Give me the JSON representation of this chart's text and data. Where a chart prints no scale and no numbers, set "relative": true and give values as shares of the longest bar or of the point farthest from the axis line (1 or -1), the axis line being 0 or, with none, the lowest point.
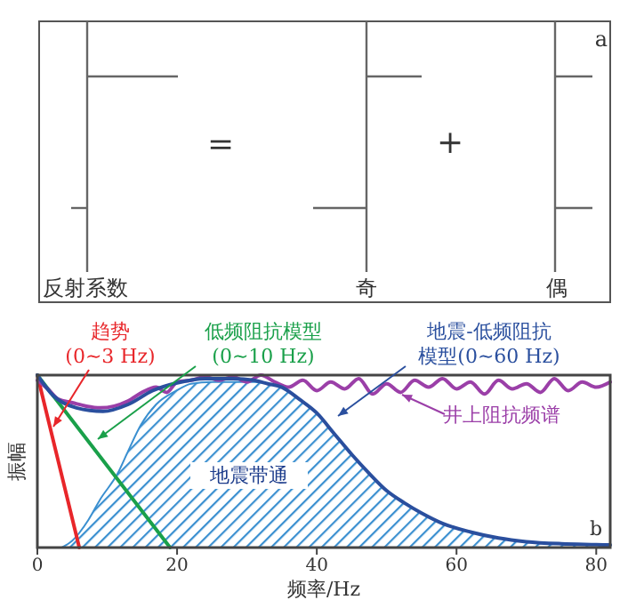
{
  "chart_data": [
    {
      "type": "other",
      "annotations": [
        "反射系数",
        "=",
        "奇",
        "+",
        "偶",
        "a"
      ]
    },
    {
      "type": "line",
      "relative": true,
      "xlabel": "频率/Hz",
      "ylabel": "振幅",
      "xlim": [
        0,
        82
      ],
      "xticks": [
        0,
        20,
        40,
        60,
        80
      ],
      "grid": false,
      "marker": "none",
      "line_style": "solid",
      "annotations": [
        "b"
      ],
      "series": [
        {
          "type": "area",
          "name": "地震带通",
          "color": "#3a8fd0",
          "x": [
            3.5,
            5,
            7.3,
            9,
            11.5,
            13,
            14.8,
            17,
            19.9,
            22,
            25,
            28,
            31,
            33,
            35,
            37.5,
            40,
            42.5,
            45,
            47.5,
            50,
            52.5,
            55,
            58,
            62,
            66,
            70,
            75,
            80,
            82
          ],
          "values": [
            0,
            0.04,
            0.16,
            0.28,
            0.43,
            0.56,
            0.71,
            0.83,
            0.91,
            0.95,
            0.96,
            0.96,
            0.96,
            0.95,
            0.93,
            0.86,
            0.78,
            0.66,
            0.54,
            0.43,
            0.33,
            0.26,
            0.2,
            0.14,
            0.09,
            0.055,
            0.034,
            0.022,
            0.017,
            0.015
          ]
        },
        {
          "name": "趋势(0~3 Hz)",
          "color": "#e8262a",
          "x": [
            0,
            6
          ],
          "values": [
            1,
            0
          ]
        },
        {
          "name": "低频阻抗模型(0~10 Hz)",
          "color": "#1aa04a",
          "x": [
            0,
            19
          ],
          "values": [
            1,
            0
          ]
        },
        {
          "name": "井上阻抗频谱",
          "color": "#9b3fa8",
          "x": [
            0,
            1.5,
            3,
            5,
            7,
            9,
            11,
            13,
            15,
            17,
            18.5,
            20,
            22,
            24,
            26,
            28,
            30,
            32,
            34,
            36,
            38,
            40,
            42,
            44,
            46,
            48,
            50,
            52,
            54,
            56,
            58,
            60,
            62,
            64,
            66,
            68,
            70,
            72,
            74,
            76,
            78,
            80,
            82
          ],
          "values": [
            0.97,
            0.92,
            0.86,
            0.84,
            0.82,
            0.81,
            0.82,
            0.85,
            0.9,
            0.93,
            0.9,
            0.96,
            0.97,
            0.99,
            0.97,
            0.99,
            0.96,
            1,
            0.96,
            0.93,
            0.97,
            0.91,
            0.96,
            0.92,
            0.98,
            0.89,
            0.95,
            0.9,
            0.97,
            0.93,
            0.98,
            0.92,
            0.96,
            0.89,
            0.97,
            0.92,
            0.95,
            0.9,
            0.98,
            0.91,
            0.96,
            0.93,
            0.96
          ]
        },
        {
          "name": "地震-低频阻抗模型(0~60 Hz)",
          "color": "#2a4f9e",
          "x": [
            0,
            2.3,
            5.6,
            9.4,
            13,
            16.5,
            20,
            24,
            28,
            31,
            33,
            35,
            37.5,
            40,
            42.5,
            45,
            47.5,
            50,
            52.5,
            55,
            58,
            62,
            66,
            70,
            75,
            80,
            82
          ],
          "values": [
            1,
            0.88,
            0.81,
            0.79,
            0.83,
            0.91,
            0.955,
            0.98,
            0.98,
            0.97,
            0.95,
            0.93,
            0.86,
            0.78,
            0.66,
            0.54,
            0.43,
            0.33,
            0.26,
            0.2,
            0.14,
            0.09,
            0.055,
            0.034,
            0.022,
            0.017,
            0.015
          ]
        }
      ]
    }
  ]
}
